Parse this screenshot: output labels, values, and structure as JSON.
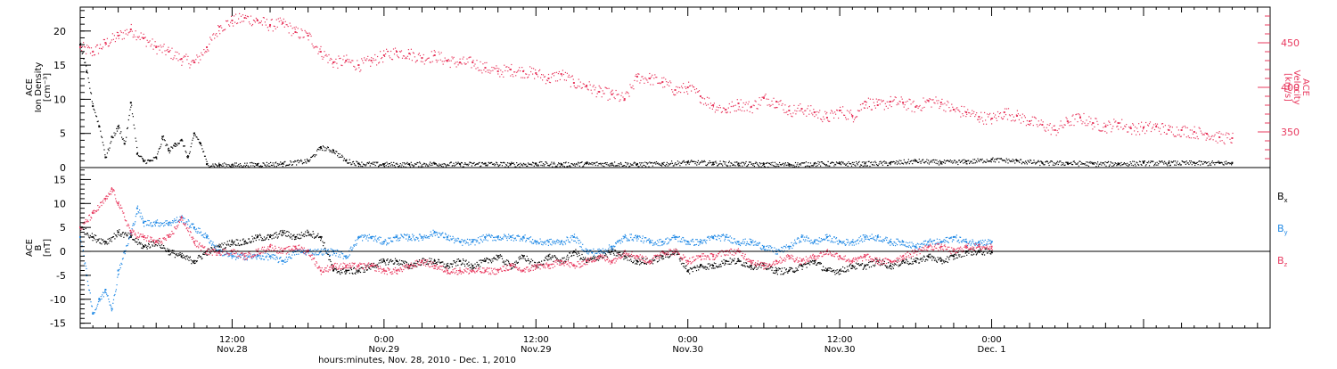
{
  "colors": {
    "black": "#000000",
    "pink": "#e8385e",
    "blue": "#1e88e5",
    "axis": "#000000"
  },
  "chart_data": [
    {
      "type": "scatter",
      "panel": "ion-density-velocity",
      "ylabel_lines": [
        "ACE",
        "Ion Density",
        "[cm⁻³]"
      ],
      "ylabel_right_lines": [
        "ACE",
        "Velocity",
        "[km/s]"
      ],
      "ylim": [
        0,
        23.5
      ],
      "yticks": [
        0,
        5,
        10,
        15,
        20
      ],
      "ylim_right": [
        310,
        490
      ],
      "yticks_right": [
        350,
        400,
        450
      ],
      "x_range_hours": [
        0,
        94
      ],
      "series": [
        {
          "axis": "left",
          "color": "#000000",
          "x": [
            0.0,
            0.5,
            1.0,
            1.5,
            2.0,
            2.5,
            3.0,
            3.5,
            4.0,
            4.5,
            5.0,
            5.5,
            6.0,
            6.5,
            7.0,
            7.5,
            8.0,
            8.5,
            9.0,
            9.5,
            10.0,
            11.0,
            12.0,
            14.0,
            16.0,
            18.0,
            19.0,
            20.0,
            21.0,
            22.0,
            24.0,
            26.0,
            28.0,
            30.0,
            32.0,
            34.0,
            36.0,
            38.0,
            40.0,
            42.0,
            44.0,
            46.0,
            48.0,
            50.0,
            52.0,
            54.0,
            56.0,
            58.0,
            60.0,
            62.0,
            64.0,
            66.0,
            68.0,
            70.0,
            72.0,
            74.0,
            76.0,
            78.0,
            80.0,
            82.0,
            84.0,
            86.0,
            88.0,
            90.0,
            91.0
          ],
          "y": [
            18.0,
            14.0,
            9.0,
            6.0,
            1.5,
            4.5,
            6.0,
            3.5,
            9.5,
            2.0,
            1.0,
            1.0,
            1.5,
            4.5,
            2.5,
            3.5,
            4.0,
            1.5,
            5.0,
            3.5,
            0.5,
            0.4,
            0.4,
            0.5,
            0.6,
            1.0,
            3.0,
            2.5,
            1.0,
            0.6,
            0.5,
            0.5,
            0.6,
            0.5,
            0.6,
            0.5,
            0.6,
            0.5,
            0.6,
            0.6,
            0.5,
            0.6,
            0.8,
            0.7,
            0.6,
            0.5,
            0.5,
            0.6,
            0.6,
            0.6,
            0.7,
            1.0,
            0.8,
            0.9,
            1.2,
            1.0,
            0.7,
            0.7,
            0.6,
            0.6,
            0.7,
            0.7,
            0.7,
            0.7,
            0.7
          ]
        },
        {
          "axis": "right",
          "color": "#e8385e",
          "x": [
            0.0,
            1.0,
            2.0,
            3.0,
            4.0,
            5.0,
            6.0,
            7.0,
            8.0,
            9.0,
            10.0,
            11.0,
            12.0,
            13.0,
            14.0,
            15.0,
            16.0,
            17.0,
            18.0,
            19.0,
            20.0,
            21.0,
            22.0,
            23.0,
            24.0,
            25.0,
            26.0,
            27.0,
            28.0,
            29.0,
            30.0,
            31.0,
            32.0,
            33.0,
            34.0,
            35.0,
            36.0,
            37.0,
            38.0,
            39.0,
            40.0,
            41.0,
            42.0,
            43.0,
            44.0,
            45.0,
            46.0,
            47.0,
            48.0,
            49.0,
            50.0,
            51.0,
            52.0,
            53.0,
            54.0,
            55.0,
            56.0,
            57.0,
            58.0,
            59.0,
            60.0,
            61.0,
            62.0,
            63.0,
            64.0,
            65.0,
            66.0,
            67.0,
            68.0,
            69.0,
            70.0,
            71.0,
            72.0,
            73.0,
            74.0,
            75.0,
            76.0,
            77.0,
            78.0,
            79.0,
            80.0,
            81.0,
            82.0,
            83.0,
            84.0,
            85.0,
            86.0,
            87.0,
            88.0,
            89.0,
            90.0,
            91.0
          ],
          "y": [
            445,
            440,
            450,
            458,
            465,
            455,
            445,
            440,
            432,
            428,
            445,
            468,
            475,
            478,
            475,
            470,
            472,
            462,
            458,
            440,
            428,
            430,
            425,
            430,
            436,
            440,
            438,
            433,
            436,
            430,
            428,
            428,
            422,
            418,
            420,
            418,
            416,
            410,
            415,
            405,
            402,
            395,
            392,
            387,
            412,
            410,
            406,
            397,
            400,
            390,
            380,
            375,
            382,
            378,
            388,
            384,
            374,
            376,
            372,
            366,
            374,
            368,
            384,
            380,
            384,
            383,
            378,
            385,
            383,
            375,
            372,
            367,
            365,
            372,
            368,
            362,
            358,
            352,
            362,
            366,
            360,
            356,
            360,
            354,
            355,
            356,
            352,
            352,
            350,
            348,
            344,
            343
          ]
        }
      ]
    },
    {
      "type": "scatter",
      "panel": "magnetic-field",
      "ylabel_lines": [
        "ACE",
        "B",
        "[nT]"
      ],
      "ylim": [
        -16,
        17.5
      ],
      "yticks": [
        -15,
        -10,
        -5,
        0,
        5,
        10,
        15
      ],
      "x_range_hours": [
        0,
        94
      ],
      "zero_line": true,
      "legend": [
        "Bx",
        "By",
        "Bz"
      ],
      "xtick_labels": [
        {
          "hours": 12,
          "time": "12:00",
          "date": "Nov.28"
        },
        {
          "hours": 24,
          "time": "0:00",
          "date": "Nov.29"
        },
        {
          "hours": 36,
          "time": "12:00",
          "date": "Nov.29"
        },
        {
          "hours": 48,
          "time": "0:00",
          "date": "Nov.30"
        },
        {
          "hours": 60,
          "time": "12:00",
          "date": "Nov.30"
        },
        {
          "hours": 72,
          "time": "0:00",
          "date": "Dec. 1"
        }
      ],
      "xlabel": "hours:minutes, Nov. 28, 2010 - Dec. 1, 2010",
      "series": [
        {
          "name": "Bx",
          "color": "#000000",
          "x": [
            0.0,
            1.0,
            2.0,
            3.0,
            4.0,
            5.0,
            6.0,
            7.0,
            8.0,
            9.0,
            10.0,
            11.0,
            12.0,
            13.0,
            14.0,
            15.0,
            16.0,
            17.0,
            18.0,
            19.0,
            20.0,
            21.0,
            22.0,
            23.0,
            24.0,
            25.0,
            26.0,
            27.0,
            28.0,
            29.0,
            30.0,
            31.0,
            32.0,
            33.0,
            34.0,
            35.0,
            36.0,
            37.0,
            38.0,
            39.0,
            40.0,
            41.0,
            42.0,
            43.0,
            44.0,
            45.0,
            46.0,
            47.0,
            48.0,
            49.0,
            50.0,
            51.0,
            52.0,
            53.0,
            54.0,
            55.0,
            56.0,
            57.0,
            58.0,
            59.0,
            60.0,
            61.0,
            62.0,
            63.0,
            64.0,
            65.0,
            66.0,
            67.0,
            68.0,
            69.0,
            70.0,
            71.0,
            72.0
          ],
          "y": [
            5,
            3,
            2,
            4,
            3,
            1,
            2,
            0,
            -1,
            -2,
            0,
            1,
            2,
            2,
            3,
            3,
            4,
            3,
            4,
            3,
            -4,
            -4,
            -4,
            -3,
            -2,
            -2,
            -3,
            -2,
            -2,
            -3,
            -2,
            -3,
            -2,
            -1,
            -3,
            -1,
            -3,
            -1,
            -2,
            0,
            -2,
            -1,
            0,
            -1,
            -2,
            -2,
            -1,
            0,
            -4,
            -3,
            -3,
            -2,
            -2,
            -3,
            -3,
            -4,
            -4,
            -3,
            -2,
            -4,
            -4,
            -3,
            -3,
            -2,
            -3,
            -2,
            -2,
            -1,
            -2,
            -1,
            0,
            0,
            0
          ]
        },
        {
          "name": "By",
          "color": "#1e88e5",
          "x": [
            0.0,
            0.5,
            1.0,
            1.5,
            2.0,
            2.5,
            3.0,
            3.5,
            4.0,
            4.5,
            5.0,
            6.0,
            7.0,
            8.0,
            9.0,
            10.0,
            11.0,
            12.0,
            13.0,
            14.0,
            15.0,
            16.0,
            17.0,
            18.0,
            19.0,
            20.0,
            21.0,
            22.0,
            23.0,
            24.0,
            25.0,
            26.0,
            27.0,
            28.0,
            29.0,
            30.0,
            31.0,
            32.0,
            33.0,
            34.0,
            35.0,
            36.0,
            37.0,
            38.0,
            39.0,
            40.0,
            41.0,
            42.0,
            43.0,
            44.0,
            45.0,
            46.0,
            47.0,
            48.0,
            49.0,
            50.0,
            51.0,
            52.0,
            53.0,
            54.0,
            55.0,
            56.0,
            57.0,
            58.0,
            59.0,
            60.0,
            61.0,
            62.0,
            63.0,
            64.0,
            65.0,
            66.0,
            67.0,
            68.0,
            69.0,
            70.0,
            71.0,
            72.0
          ],
          "y": [
            3,
            -5,
            -13,
            -10,
            -8,
            -12,
            -4,
            0,
            4,
            9,
            6,
            6,
            6,
            7,
            5,
            3,
            0,
            -1,
            -1,
            -1,
            -1,
            -2,
            0,
            0,
            0,
            0,
            -1,
            3,
            3,
            2,
            3,
            3,
            3,
            4,
            3,
            2,
            2,
            3,
            3,
            3,
            3,
            2,
            2,
            2,
            3,
            0,
            0,
            1,
            3,
            3,
            2,
            2,
            3,
            2,
            2,
            3,
            3,
            2,
            2,
            1,
            0,
            1,
            3,
            2,
            3,
            2,
            2,
            3,
            3,
            2,
            2,
            1,
            2,
            2,
            3,
            2,
            2,
            2
          ]
        },
        {
          "name": "Bz",
          "color": "#e8385e",
          "x": [
            0.0,
            1.0,
            2.0,
            2.5,
            3.0,
            4.0,
            5.0,
            6.0,
            7.0,
            8.0,
            9.0,
            10.0,
            11.0,
            12.0,
            13.0,
            14.0,
            15.0,
            16.0,
            17.0,
            18.0,
            19.0,
            20.0,
            21.0,
            22.0,
            23.0,
            24.0,
            25.0,
            26.0,
            27.0,
            28.0,
            29.0,
            30.0,
            31.0,
            32.0,
            33.0,
            34.0,
            35.0,
            36.0,
            37.0,
            38.0,
            39.0,
            40.0,
            41.0,
            42.0,
            43.0,
            44.0,
            45.0,
            46.0,
            47.0,
            48.0,
            49.0,
            50.0,
            51.0,
            52.0,
            53.0,
            54.0,
            55.0,
            56.0,
            57.0,
            58.0,
            59.0,
            60.0,
            61.0,
            62.0,
            63.0,
            64.0,
            65.0,
            66.0,
            67.0,
            68.0,
            69.0,
            70.0,
            71.0,
            72.0
          ],
          "y": [
            5,
            8,
            11,
            13,
            10,
            4,
            3,
            2,
            3,
            7,
            2,
            0,
            0,
            0,
            -1,
            0,
            1,
            0,
            1,
            0,
            -4,
            -3,
            -3,
            -3,
            -3,
            -4,
            -4,
            -3,
            -2,
            -3,
            -4,
            -4,
            -4,
            -4,
            -4,
            -3,
            -4,
            -3,
            -3,
            -2,
            -3,
            -2,
            -1,
            -2,
            0,
            -1,
            -2,
            0,
            0,
            -2,
            -1,
            -1,
            0,
            0,
            -2,
            -3,
            -2,
            -1,
            -2,
            -1,
            0,
            -1,
            -2,
            -1,
            -2,
            -2,
            -1,
            0,
            1,
            1,
            0,
            1,
            1,
            1
          ]
        }
      ]
    }
  ]
}
